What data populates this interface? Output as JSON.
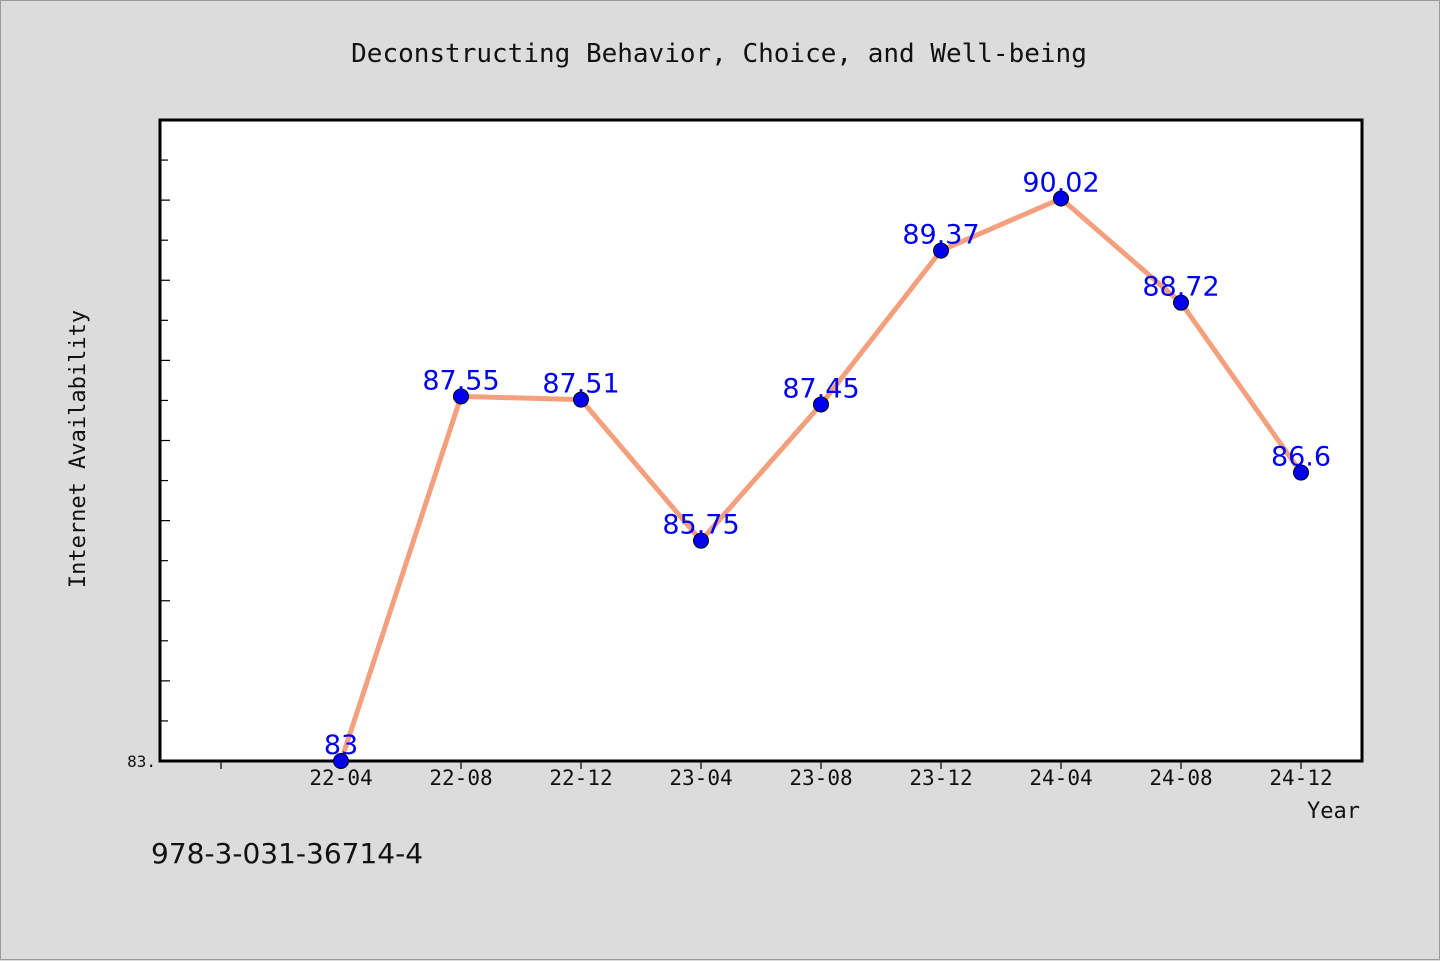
{
  "chart_data": {
    "type": "line",
    "title": "Deconstructing Behavior, Choice, and Well-being",
    "xlabel": "Year",
    "ylabel": "Internet Availability",
    "categories": [
      "22-04",
      "22-08",
      "22-12",
      "23-04",
      "23-08",
      "23-12",
      "24-04",
      "24-08",
      "24-12"
    ],
    "values": [
      83,
      87.55,
      87.51,
      85.75,
      87.45,
      89.37,
      90.02,
      88.72,
      86.6
    ],
    "data_labels": [
      "83",
      "87.55",
      "87.51",
      "85.75",
      "87.45",
      "89.37",
      "90.02",
      "88.72",
      "86.6"
    ],
    "ytick_label": "83.",
    "ylim": [
      83,
      91
    ],
    "grid": false,
    "line_color": "#f4a07e",
    "marker_color": "#0000ee",
    "label_color": "#0000ee"
  },
  "footer": {
    "isbn": "978-3-031-36714-4"
  }
}
